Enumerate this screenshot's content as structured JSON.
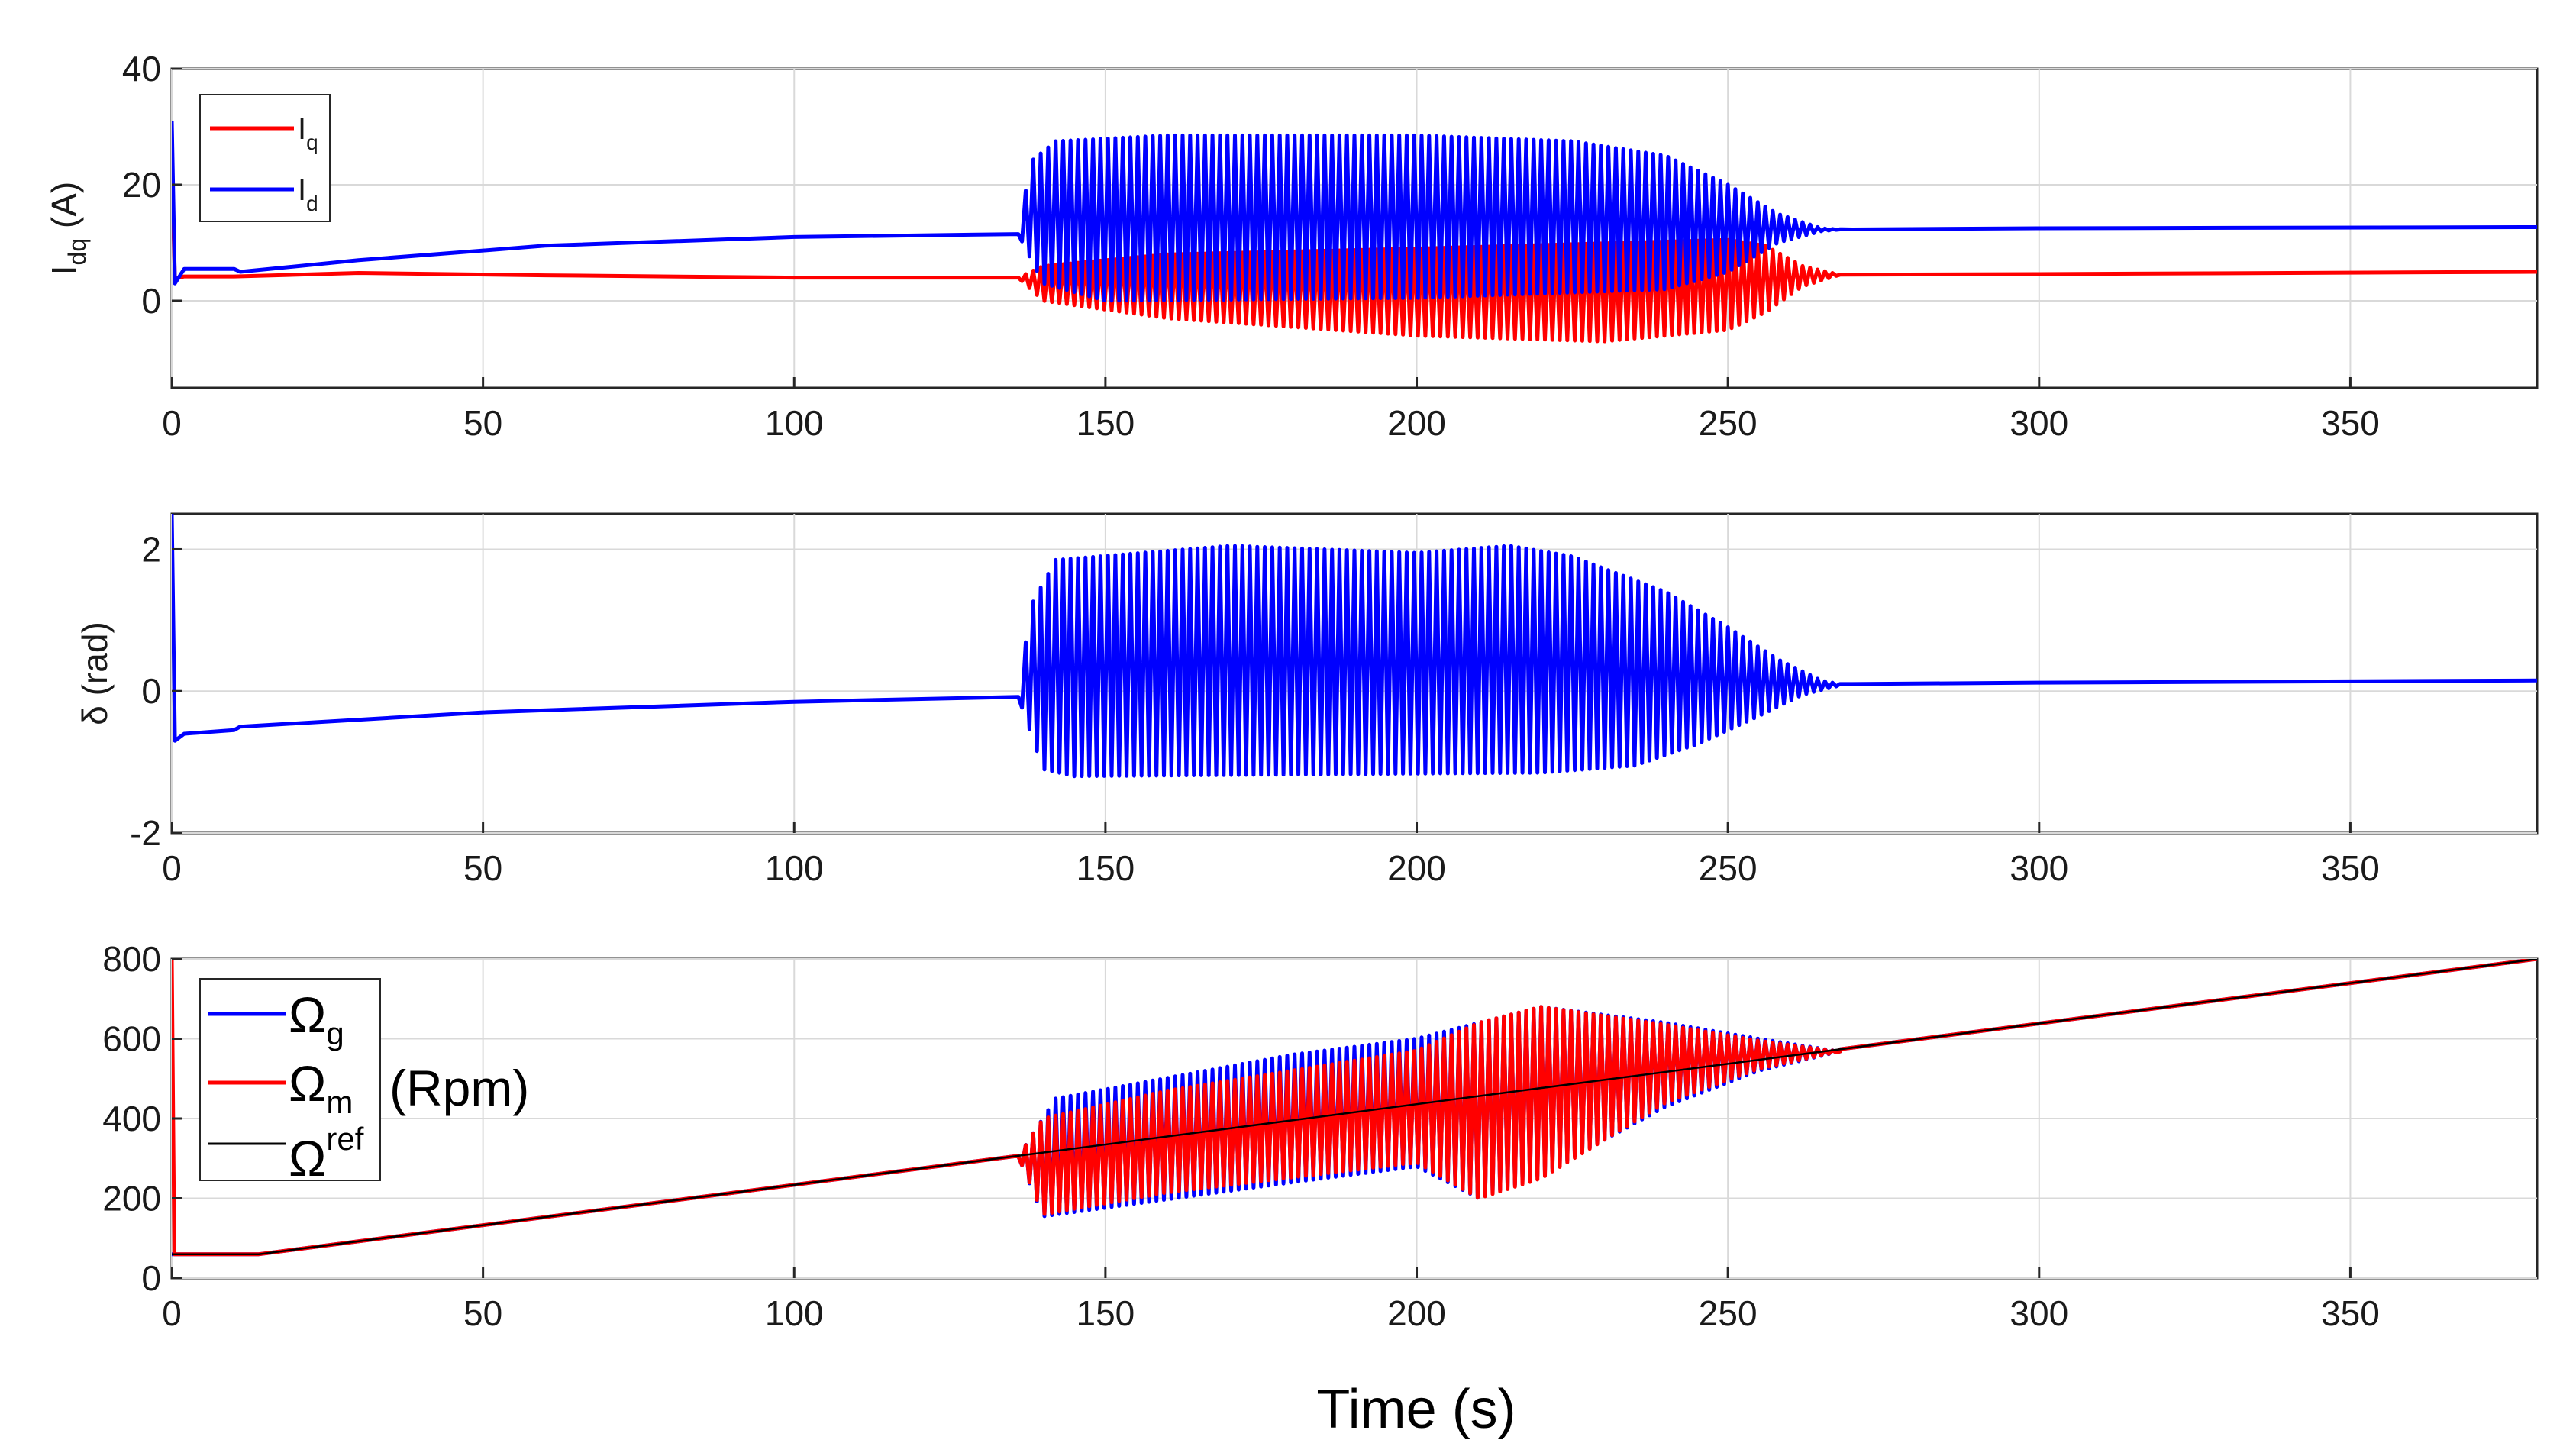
{
  "chart_data": [
    {
      "type": "line",
      "id": "idq",
      "ylabel_main": "I",
      "ylabel_sub": "dq",
      "ylabel_unit": " (A)",
      "xlim": [
        0,
        380
      ],
      "ylim": [
        -15,
        40
      ],
      "xticks": [
        0,
        50,
        100,
        150,
        200,
        250,
        300,
        350
      ],
      "yticks": [
        0,
        20,
        40
      ],
      "xtick_labels": [
        "0",
        "50",
        "100",
        "150",
        "200",
        "250",
        "300",
        "350"
      ],
      "ytick_labels": [
        "0",
        "20",
        "40"
      ],
      "grid": true,
      "legend_position": "top-left",
      "series": [
        {
          "name": "Iq",
          "label_main": "I",
          "label_sub": "q",
          "color": "#ff0000",
          "x": [
            0,
            0.5,
            2,
            10,
            30,
            60,
            100,
            136,
            140,
            160,
            200,
            250,
            256,
            265,
            300,
            380
          ],
          "y": [
            22,
            3.8,
            4.2,
            4.2,
            4.8,
            4.4,
            4.0,
            4.0,
            1.0,
            -2,
            -6,
            -6,
            5.5,
            4.5,
            4.6,
            5.0
          ],
          "oscillation": {
            "start": 136,
            "end": 268,
            "upper": [
              [
                136,
                4
              ],
              [
                140,
                6
              ],
              [
                160,
                8
              ],
              [
                200,
                9
              ],
              [
                250,
                10.5
              ],
              [
                256,
                9.5
              ],
              [
                262,
                6
              ],
              [
                268,
                4.5
              ]
            ],
            "lower": [
              [
                136,
                4
              ],
              [
                140,
                0
              ],
              [
                160,
                -3
              ],
              [
                200,
                -6
              ],
              [
                230,
                -7
              ],
              [
                250,
                -5
              ],
              [
                256,
                -2
              ],
              [
                262,
                2.5
              ],
              [
                268,
                4.5
              ]
            ]
          }
        },
        {
          "name": "Id",
          "label_main": "I",
          "label_sub": "d",
          "color": "#0000ff",
          "x": [
            0,
            0.5,
            2,
            10,
            11,
            30,
            60,
            100,
            136,
            140,
            200,
            250,
            260,
            270,
            300,
            380
          ],
          "y": [
            31,
            3,
            5.5,
            5.5,
            5,
            7,
            9.5,
            11,
            11.5,
            14,
            14,
            12,
            12.5,
            12.3,
            12.5,
            12.7
          ],
          "oscillation": {
            "start": 136,
            "end": 268,
            "upper": [
              [
                136,
                11.5
              ],
              [
                138,
                24
              ],
              [
                142,
                27.5
              ],
              [
                160,
                28.5
              ],
              [
                200,
                28.5
              ],
              [
                225,
                27.5
              ],
              [
                240,
                25
              ],
              [
                250,
                20
              ],
              [
                258,
                15
              ],
              [
                265,
                12.5
              ],
              [
                268,
                12.3
              ]
            ],
            "lower": [
              [
                136,
                11.5
              ],
              [
                140,
                3
              ],
              [
                150,
                0
              ],
              [
                200,
                0.5
              ],
              [
                240,
                2
              ],
              [
                250,
                5
              ],
              [
                258,
                10
              ],
              [
                265,
                12
              ],
              [
                268,
                12.3
              ]
            ]
          }
        }
      ]
    },
    {
      "type": "line",
      "id": "delta",
      "ylabel_main": "δ (rad)",
      "xlim": [
        0,
        380
      ],
      "ylim": [
        -2,
        2.5
      ],
      "xticks": [
        0,
        50,
        100,
        150,
        200,
        250,
        300,
        350
      ],
      "yticks": [
        -2,
        0,
        2
      ],
      "xtick_labels": [
        "0",
        "50",
        "100",
        "150",
        "200",
        "250",
        "300",
        "350"
      ],
      "ytick_labels": [
        "-2",
        "0",
        "2"
      ],
      "grid": true,
      "series": [
        {
          "name": "delta",
          "color": "#0000ff",
          "x": [
            0,
            0.5,
            2,
            10,
            11,
            50,
            100,
            136,
            200,
            262,
            270,
            300,
            380
          ],
          "y": [
            2.5,
            -0.7,
            -0.6,
            -0.55,
            -0.5,
            -0.3,
            -0.15,
            -0.08,
            0.3,
            0.1,
            0.1,
            0.12,
            0.15
          ],
          "oscillation": {
            "start": 136,
            "end": 268,
            "upper": [
              [
                136,
                -0.08
              ],
              [
                138,
                1.2
              ],
              [
                142,
                1.85
              ],
              [
                170,
                2.05
              ],
              [
                200,
                1.95
              ],
              [
                215,
                2.05
              ],
              [
                225,
                1.9
              ],
              [
                240,
                1.4
              ],
              [
                250,
                0.9
              ],
              [
                258,
                0.45
              ],
              [
                265,
                0.15
              ],
              [
                268,
                0.1
              ]
            ],
            "lower": [
              [
                136,
                -0.08
              ],
              [
                140,
                -1.1
              ],
              [
                145,
                -1.2
              ],
              [
                220,
                -1.15
              ],
              [
                235,
                -1.05
              ],
              [
                245,
                -0.75
              ],
              [
                255,
                -0.35
              ],
              [
                262,
                -0.05
              ],
              [
                268,
                0.08
              ]
            ]
          }
        }
      ]
    },
    {
      "type": "line",
      "id": "omega",
      "ylabel_main": "",
      "xlim": [
        0,
        380
      ],
      "ylim": [
        0,
        800
      ],
      "xticks": [
        0,
        50,
        100,
        150,
        200,
        250,
        300,
        350
      ],
      "yticks": [
        0,
        200,
        400,
        600,
        800
      ],
      "xtick_labels": [
        "0",
        "50",
        "100",
        "150",
        "200",
        "250",
        "300",
        "350"
      ],
      "ytick_labels": [
        "0",
        "200",
        "400",
        "600",
        "800"
      ],
      "grid": true,
      "legend_position": "top-left",
      "unit_label": "(Rpm)",
      "series": [
        {
          "name": "Ωg",
          "label_main": "Ω",
          "label_sub": "g",
          "color": "#0000ff",
          "x": [
            0,
            14,
            380
          ],
          "y": [
            60,
            60,
            800
          ],
          "oscillation": {
            "start": 136,
            "end": 268,
            "upper": [
              [
                136,
                305
              ],
              [
                142,
                450
              ],
              [
                180,
                560
              ],
              [
                200,
                600
              ],
              [
                210,
                640
              ],
              [
                220,
                680
              ],
              [
                240,
                640
              ],
              [
                255,
                600
              ],
              [
                268,
                568
              ]
            ],
            "lower": [
              [
                136,
                305
              ],
              [
                140,
                155
              ],
              [
                180,
                240
              ],
              [
                200,
                280
              ],
              [
                210,
                200
              ],
              [
                220,
                260
              ],
              [
                240,
                430
              ],
              [
                255,
                520
              ],
              [
                268,
                568
              ]
            ]
          }
        },
        {
          "name": "Ωm",
          "label_main": "Ω",
          "label_sub": "m",
          "color": "#ff0000",
          "x": [
            0,
            0.4,
            1,
            14,
            380
          ],
          "y": [
            800,
            60,
            60,
            60,
            800
          ],
          "oscillation": {
            "start": 136,
            "end": 268,
            "upper": [
              [
                136,
                305
              ],
              [
                140,
                400
              ],
              [
                160,
                470
              ],
              [
                200,
                570
              ],
              [
                210,
                640
              ],
              [
                220,
                680
              ],
              [
                240,
                635
              ],
              [
                255,
                595
              ],
              [
                268,
                568
              ]
            ],
            "lower": [
              [
                136,
                305
              ],
              [
                140,
                160
              ],
              [
                160,
                215
              ],
              [
                200,
                290
              ],
              [
                210,
                200
              ],
              [
                220,
                250
              ],
              [
                240,
                440
              ],
              [
                255,
                525
              ],
              [
                268,
                568
              ]
            ]
          }
        },
        {
          "name": "Ωref",
          "label_main": "Ω",
          "label_sup": "ref",
          "color": "#000000",
          "x": [
            0,
            14,
            380
          ],
          "y": [
            60,
            60,
            800
          ]
        }
      ]
    }
  ],
  "xlabel": "Time (s)"
}
